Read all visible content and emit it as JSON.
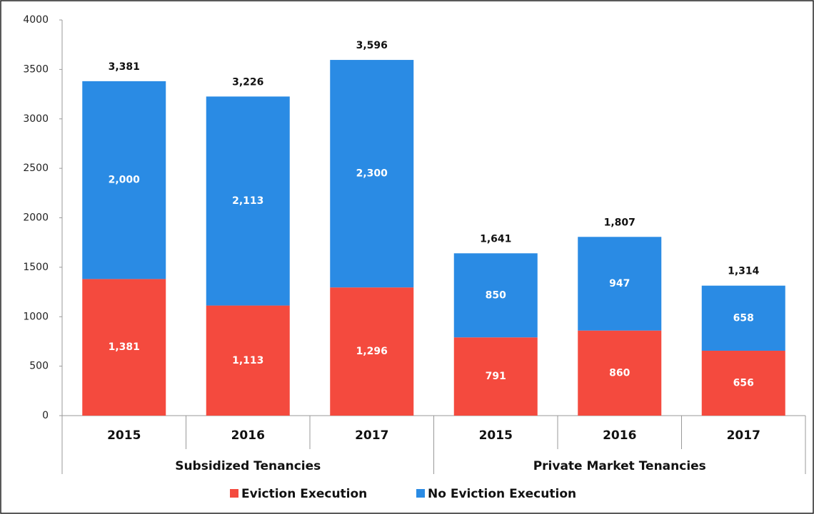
{
  "chart_data": {
    "type": "stacked_bar",
    "groups": [
      {
        "name": "Subsidized Tenancies",
        "categories": [
          "2015",
          "2016",
          "2017"
        ]
      },
      {
        "name": "Private Market Tenancies",
        "categories": [
          "2015",
          "2016",
          "2017"
        ]
      }
    ],
    "series": [
      {
        "name": "Eviction Execution",
        "color": "#f44a3e",
        "values": [
          1381,
          1113,
          1296,
          791,
          860,
          656
        ],
        "value_labels": [
          "1,381",
          "1,113",
          "1,296",
          "791",
          "860",
          "656"
        ]
      },
      {
        "name": "No Eviction Execution",
        "color": "#2a8be4",
        "values": [
          2000,
          2113,
          2300,
          850,
          947,
          658
        ],
        "value_labels": [
          "2,000",
          "2,113",
          "2,300",
          "850",
          "947",
          "658"
        ]
      }
    ],
    "totals": [
      3381,
      3226,
      3596,
      1641,
      1807,
      1314
    ],
    "total_labels": [
      "3,381",
      "3,226",
      "3,596",
      "1,641",
      "1,807",
      "1,314"
    ],
    "ylim": [
      0,
      4000
    ],
    "yticks": [
      0,
      500,
      1000,
      1500,
      2000,
      2500,
      3000,
      3500,
      4000
    ],
    "legend": "bottom"
  }
}
